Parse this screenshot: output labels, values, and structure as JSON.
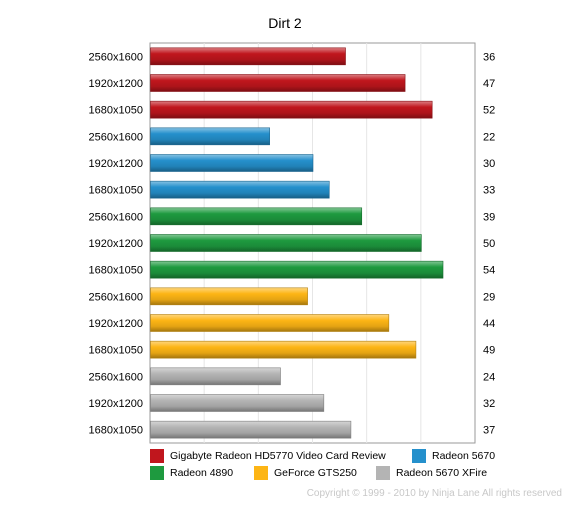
{
  "chart_data": {
    "type": "bar",
    "orientation": "horizontal",
    "title": "Dirt 2",
    "xlim": [
      0,
      60
    ],
    "grid": true,
    "legend_position": "bottom",
    "bars": [
      {
        "series": "Gigabyte Radeon HD5770 Video Card Review",
        "category": "2560x1600",
        "value": 36
      },
      {
        "series": "Gigabyte Radeon HD5770 Video Card Review",
        "category": "1920x1200",
        "value": 47
      },
      {
        "series": "Gigabyte Radeon HD5770 Video Card Review",
        "category": "1680x1050",
        "value": 52
      },
      {
        "series": "Radeon 5670",
        "category": "2560x1600",
        "value": 22
      },
      {
        "series": "Radeon 5670",
        "category": "1920x1200",
        "value": 30
      },
      {
        "series": "Radeon 5670",
        "category": "1680x1050",
        "value": 33
      },
      {
        "series": "Radeon 4890",
        "category": "2560x1600",
        "value": 39
      },
      {
        "series": "Radeon 4890",
        "category": "1920x1200",
        "value": 50
      },
      {
        "series": "Radeon 4890",
        "category": "1680x1050",
        "value": 54
      },
      {
        "series": "GeForce GTS250",
        "category": "2560x1600",
        "value": 29
      },
      {
        "series": "GeForce GTS250",
        "category": "1920x1200",
        "value": 44
      },
      {
        "series": "GeForce GTS250",
        "category": "1680x1050",
        "value": 49
      },
      {
        "series": "Radeon 5670 XFire",
        "category": "2560x1600",
        "value": 24
      },
      {
        "series": "Radeon 5670 XFire",
        "category": "1920x1200",
        "value": 32
      },
      {
        "series": "Radeon 5670 XFire",
        "category": "1680x1050",
        "value": 37
      }
    ],
    "series": [
      {
        "name": "Gigabyte Radeon HD5770 Video Card Review",
        "color": "#c0161d"
      },
      {
        "name": "Radeon 5670",
        "color": "#2590cc"
      },
      {
        "name": "Radeon 4890",
        "color": "#1e9a3f"
      },
      {
        "name": "GeForce GTS250",
        "color": "#fdb515"
      },
      {
        "name": "Radeon 5670 XFire",
        "color": "#b4b4b4"
      }
    ]
  },
  "copyright": "Copyright © 1999 - 2010 by Ninja Lane All rights reserved"
}
